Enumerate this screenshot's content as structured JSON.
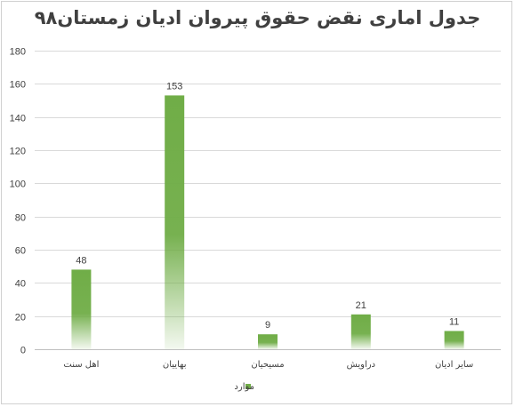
{
  "chart_data": {
    "type": "bar",
    "title": "جدول اماری نقض حقوق پیروان ادیان زمستان۹۸",
    "categories": [
      "اهل سنت",
      "بهاییان",
      "مسیحیان",
      "دراویش",
      "سایر ادیان"
    ],
    "series": [
      {
        "name": "موارد",
        "values": [
          48,
          153,
          9,
          21,
          11
        ]
      }
    ],
    "ylim": [
      0,
      180
    ],
    "yticks": [
      0,
      20,
      40,
      60,
      80,
      100,
      120,
      140,
      160,
      180
    ],
    "grid": true,
    "legend": "bottom",
    "color": "#70ad47"
  }
}
